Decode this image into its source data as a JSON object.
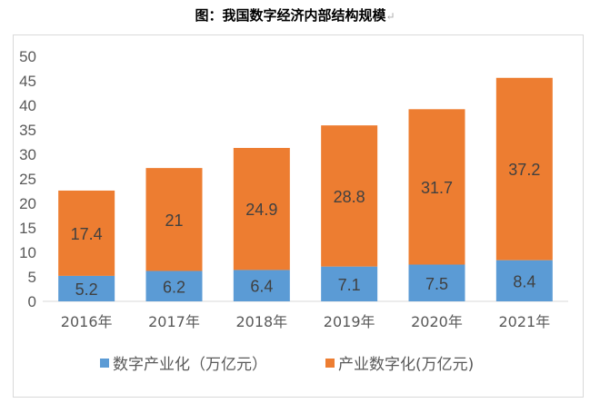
{
  "chart_data": {
    "type": "bar",
    "stacked": true,
    "title": "图：我国数字经济内部结构规模",
    "categories": [
      "2016年",
      "2017年",
      "2018年",
      "2019年",
      "2020年",
      "2021年"
    ],
    "series": [
      {
        "name": "数字产业化（万亿元）",
        "values": [
          5.2,
          6.2,
          6.4,
          7.1,
          7.5,
          8.4
        ],
        "color": "#5B9BD5"
      },
      {
        "name": "产业数字化(万亿元)",
        "values": [
          17.4,
          21,
          24.9,
          28.8,
          31.7,
          37.2
        ],
        "color": "#ED7D31"
      }
    ],
    "ylim": [
      0,
      50
    ],
    "yticks": [
      0,
      5,
      10,
      15,
      20,
      25,
      30,
      35,
      40,
      45,
      50
    ],
    "grid": false,
    "legend": "bottom",
    "data_labels": true
  }
}
